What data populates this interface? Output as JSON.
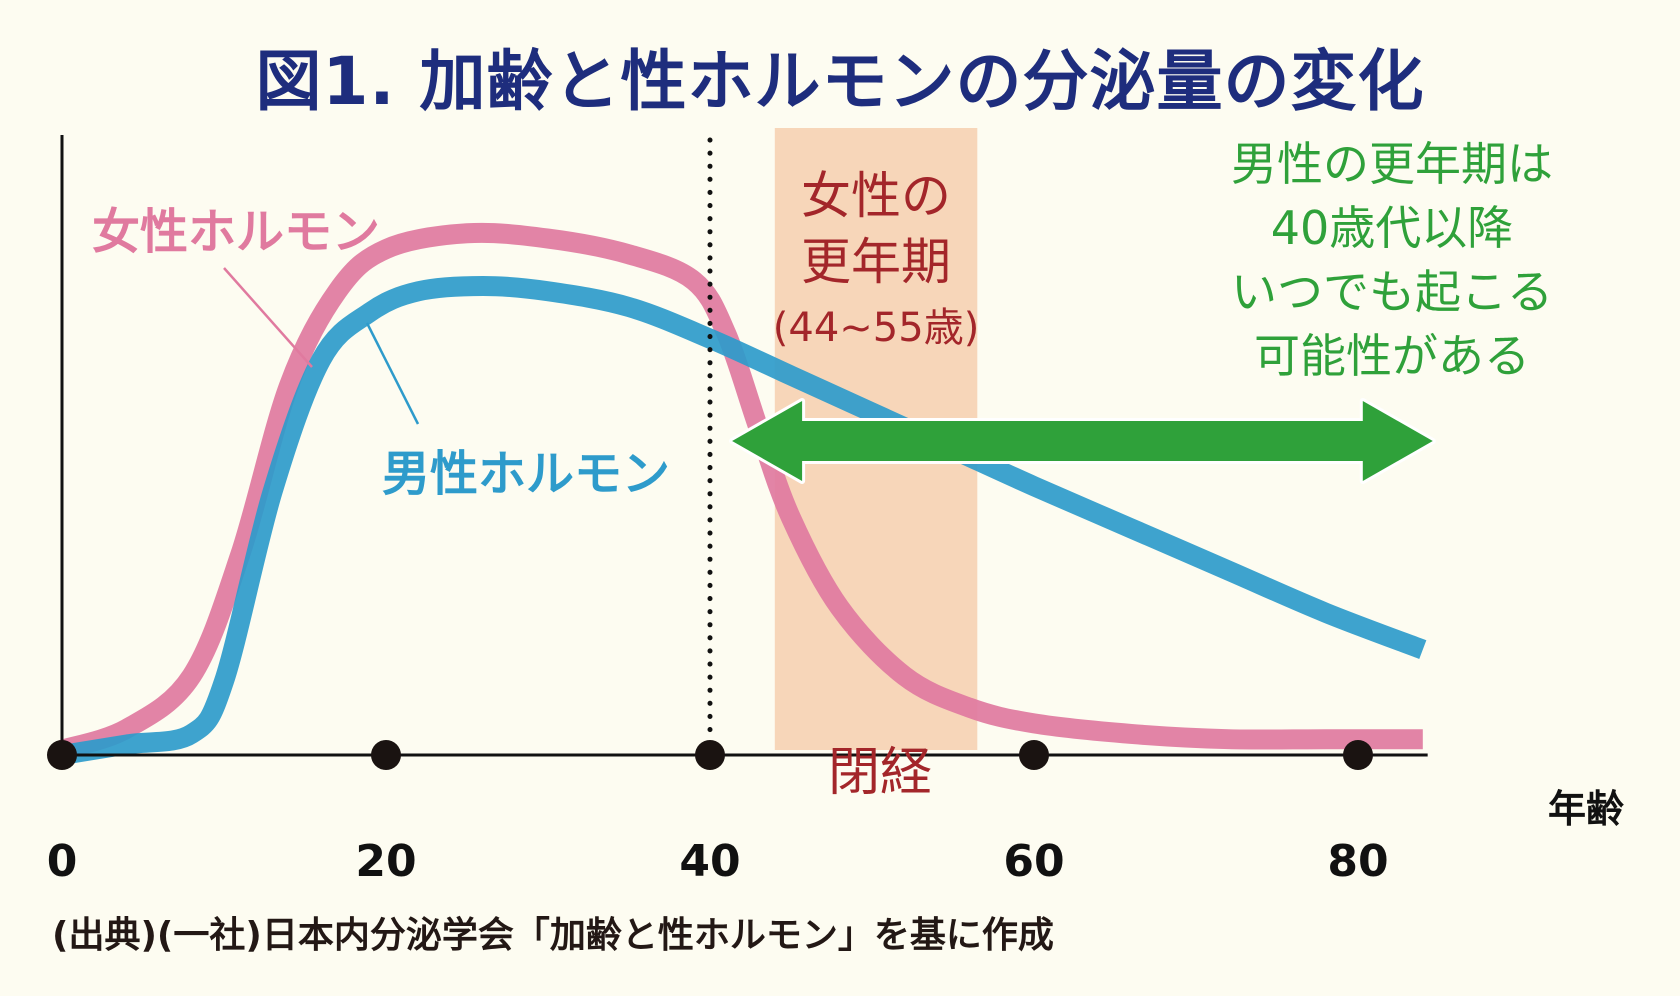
{
  "title": "図1. 加齢と性ホルモンの分泌量の変化",
  "source": "(出典)(一社)日本内分泌学会「加齢と性ホルモン」を基に作成",
  "colors": {
    "background": "#fdfcf1",
    "title": "#1e2d7d",
    "female": "#e07a9f",
    "male": "#2e9bcb",
    "menopause_band": "#f7d6b9",
    "menopause_text": "#a3262a",
    "male_note": "#2fa13a",
    "axis": "#111111"
  },
  "chart_data": {
    "type": "line",
    "title": "図1. 加齢と性ホルモンの分泌量の変化",
    "xlabel": "年齢",
    "ylabel": "",
    "xlim": [
      0,
      84
    ],
    "ylim": [
      0,
      100
    ],
    "x_ticks": [
      0,
      20,
      40,
      60,
      80
    ],
    "x_tick_labels": [
      "0",
      "20",
      "40",
      "60",
      "80"
    ],
    "grid": false,
    "legend": "inline-labels",
    "series": [
      {
        "name": "女性ホルモン",
        "color_key": "female",
        "x": [
          0,
          4,
          8,
          11,
          14,
          17,
          20,
          25,
          30,
          35,
          39,
          41,
          43,
          45,
          48,
          52,
          56,
          60,
          66,
          72,
          78,
          84
        ],
        "y": [
          1,
          5,
          15,
          38,
          70,
          88,
          96,
          99,
          98,
          95,
          90,
          80,
          62,
          45,
          28,
          15,
          9,
          6,
          4,
          3,
          3,
          3
        ]
      },
      {
        "name": "男性ホルモン",
        "color_key": "male",
        "x": [
          0,
          4,
          8,
          10,
          13,
          16,
          19,
          22,
          26,
          30,
          35,
          40,
          45,
          50,
          55,
          60,
          66,
          72,
          78,
          84
        ],
        "y": [
          0,
          2,
          4,
          14,
          50,
          75,
          84,
          88,
          89,
          88,
          85,
          79,
          72,
          65,
          58,
          51,
          43,
          35,
          27,
          20
        ]
      }
    ],
    "annotations": [
      {
        "type": "vline-dotted",
        "x": 40
      },
      {
        "type": "band",
        "x_from": 44,
        "x_to": 56.5,
        "label_lines": [
          "女性の",
          "更年期",
          "(44~55歳)"
        ],
        "bottom_label": "閉経"
      },
      {
        "type": "double-arrow",
        "x_from": 40.5,
        "x_to": 84,
        "y": 64,
        "label_lines": [
          "男性の更年期は",
          "40歳代以降",
          "いつでも起こる",
          "可能性がある"
        ]
      },
      {
        "type": "series-label",
        "series": "女性ホルモン",
        "text": "女性ホルモン"
      },
      {
        "type": "series-label",
        "series": "男性ホルモン",
        "text": "男性ホルモン"
      }
    ]
  }
}
